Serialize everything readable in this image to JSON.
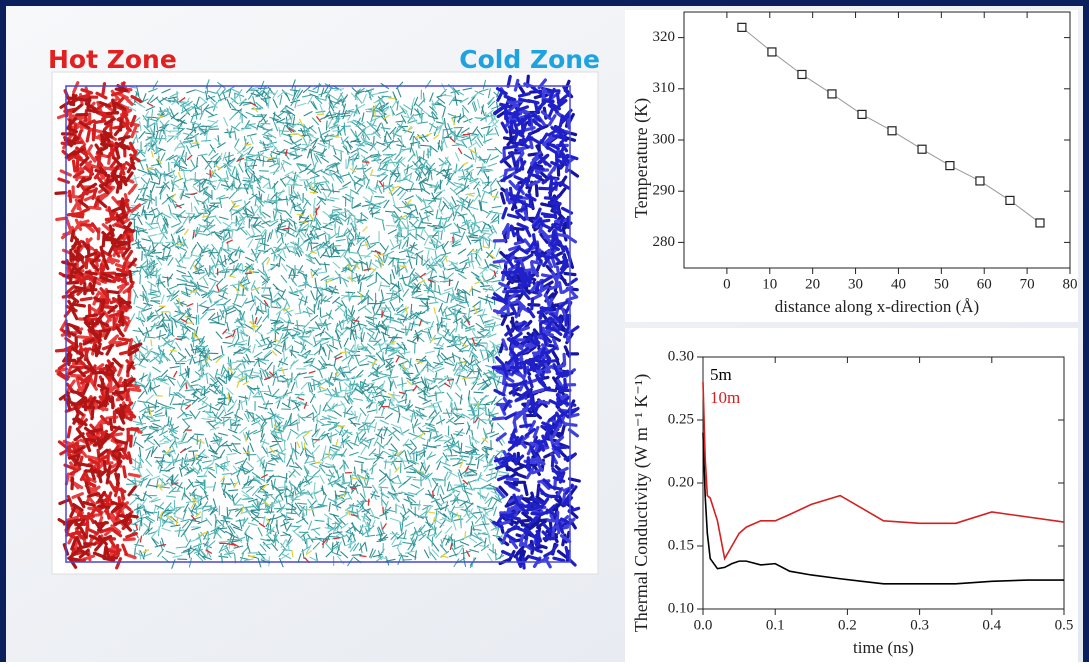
{
  "labels": {
    "hot": "Hot Zone",
    "cold": "Cold Zone"
  },
  "chart_data": [
    {
      "type": "line",
      "marker": "square",
      "color": "#999999",
      "ylabel": "Temperature (K)",
      "xlabel": "distance along x-direction (Å)",
      "x": [
        3.5,
        10.5,
        17.5,
        24.5,
        31.5,
        38.5,
        45.5,
        52,
        59,
        66,
        73
      ],
      "values": [
        322,
        317.2,
        312.8,
        309,
        305,
        301.8,
        298.2,
        295,
        292,
        288.2,
        283.8
      ],
      "xlim": [
        -10,
        80
      ],
      "xticks": [
        0,
        10,
        20,
        30,
        40,
        50,
        60,
        70,
        80
      ],
      "ylim": [
        275,
        325
      ],
      "yticks": [
        280,
        290,
        300,
        310,
        320
      ]
    },
    {
      "type": "line",
      "ylabel": "Thermal Conductivity (W m⁻¹ K⁻¹)",
      "xlabel": "time (ns)",
      "x": [
        0,
        0.003,
        0.006,
        0.01,
        0.02,
        0.03,
        0.04,
        0.05,
        0.06,
        0.08,
        0.1,
        0.12,
        0.15,
        0.19,
        0.22,
        0.25,
        0.3,
        0.35,
        0.4,
        0.45,
        0.5
      ],
      "series": [
        {
          "name": "5m",
          "color": "#000000",
          "values": [
            0.24,
            0.19,
            0.16,
            0.14,
            0.132,
            0.133,
            0.136,
            0.138,
            0.138,
            0.135,
            0.136,
            0.13,
            0.127,
            0.124,
            0.122,
            0.12,
            0.12,
            0.12,
            0.122,
            0.123,
            0.123
          ]
        },
        {
          "name": "10m",
          "color": "#d42020",
          "values": [
            0.28,
            0.22,
            0.19,
            0.188,
            0.17,
            0.14,
            0.15,
            0.16,
            0.165,
            0.17,
            0.17,
            0.175,
            0.183,
            0.19,
            0.18,
            0.17,
            0.168,
            0.168,
            0.177,
            0.173,
            0.169
          ]
        }
      ],
      "xlim": [
        0,
        0.5
      ],
      "xticks": [
        {
          "value": 0,
          "label": "0.0"
        },
        0.1,
        0.2,
        0.3,
        0.4,
        0.5
      ],
      "ylim": [
        0.1,
        0.3
      ],
      "yticks": [
        {
          "value": 0.1,
          "label": "0.10"
        },
        0.15,
        {
          "value": 0.2,
          "label": "0.20"
        },
        0.25,
        {
          "value": 0.3,
          "label": "0.30"
        }
      ]
    }
  ]
}
